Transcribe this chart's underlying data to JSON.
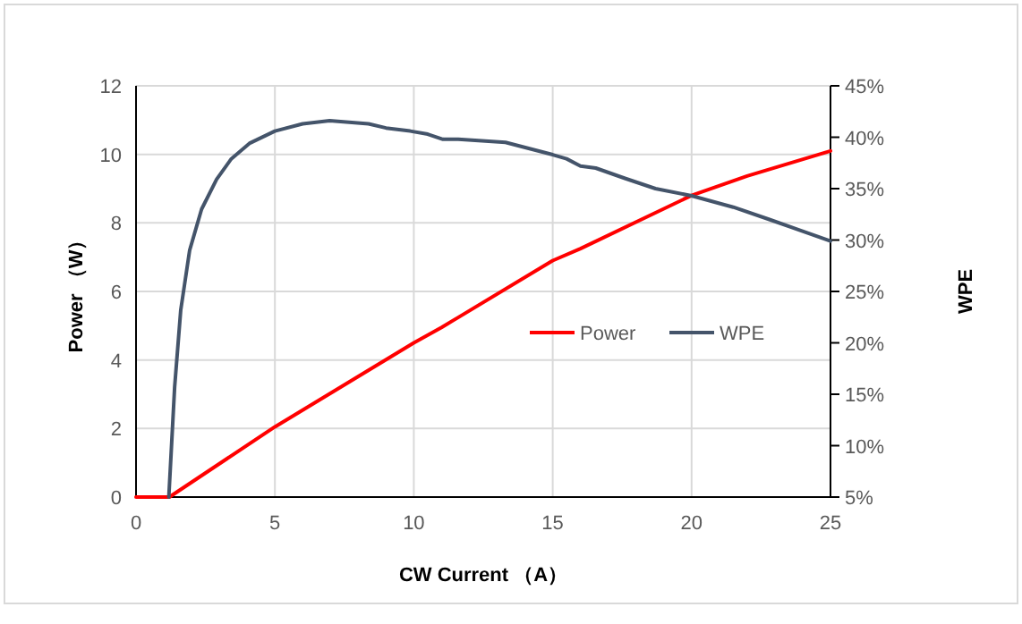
{
  "chart_data": {
    "type": "line",
    "xlabel": "CW Current （A）",
    "ylabel": "Power （W）",
    "y2label": "WPE",
    "xlim": [
      0,
      25
    ],
    "xticks": [
      0,
      5,
      10,
      15,
      20,
      25
    ],
    "ylim": [
      0,
      12
    ],
    "yticks": [
      0,
      2,
      4,
      6,
      8,
      10,
      12
    ],
    "y2lim": [
      5,
      45
    ],
    "y2ticks": [
      {
        "value": 5,
        "label": "5%"
      },
      {
        "value": 10,
        "label": "10%"
      },
      {
        "value": 15,
        "label": "15%"
      },
      {
        "value": 20,
        "label": "20%"
      },
      {
        "value": 25,
        "label": "25%"
      },
      {
        "value": 30,
        "label": "30%"
      },
      {
        "value": 35,
        "label": "35%"
      },
      {
        "value": 40,
        "label": "40%"
      },
      {
        "value": 45,
        "label": "45%"
      }
    ],
    "grid": true,
    "legend": "right",
    "marker": "none",
    "line_style": "solid",
    "series": [
      {
        "name": "Power",
        "color": "#ff0000",
        "x": [
          0,
          1.2,
          5,
          10,
          11,
          15,
          16,
          20,
          22,
          25
        ],
        "values": [
          0,
          0,
          2.05,
          4.5,
          4.95,
          6.9,
          7.25,
          8.8,
          9.37,
          10.1
        ]
      },
      {
        "name": "WPE",
        "color": "#44546a",
        "axis": "y2",
        "x": [
          1.18,
          1.39,
          1.61,
          1.93,
          2.36,
          2.9,
          3.43,
          4.08,
          5,
          6,
          6.97,
          8.37,
          9,
          9.87,
          10.5,
          11.05,
          11.6,
          13.3,
          15,
          15.5,
          16,
          16.55,
          17.6,
          18.7,
          20,
          21.5,
          22.8,
          25
        ],
        "values": [
          5,
          15.7,
          23.2,
          29,
          33,
          35.9,
          37.9,
          39.4,
          40.6,
          41.3,
          41.6,
          41.3,
          40.9,
          40.6,
          40.3,
          39.8,
          39.8,
          39.5,
          38.3,
          37.9,
          37.2,
          37,
          36,
          35,
          34.3,
          33.2,
          32,
          29.9
        ]
      }
    ]
  }
}
